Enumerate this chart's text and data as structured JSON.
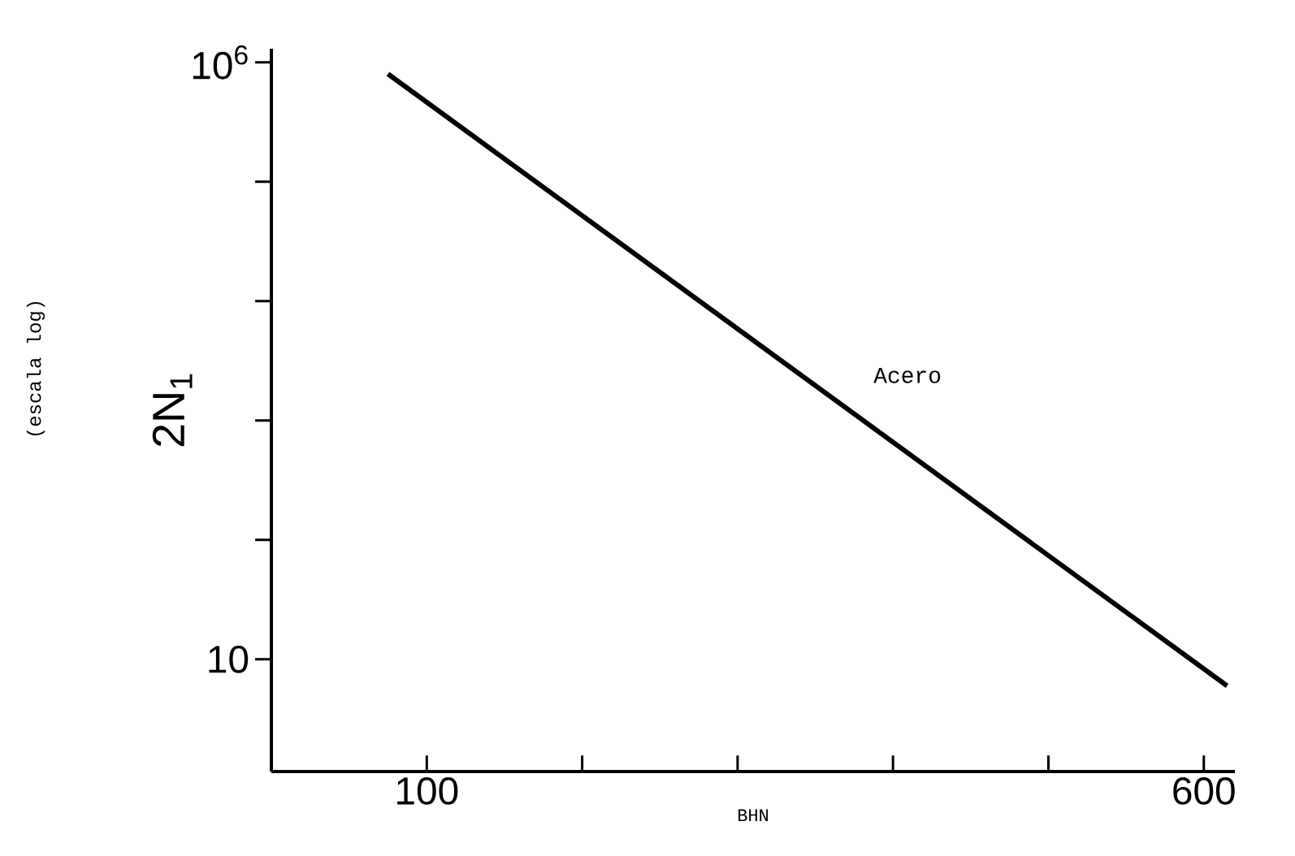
{
  "chart_data": {
    "type": "line",
    "xlabel": "BHN",
    "ylabel": "2N$_{1}$",
    "annotations": [
      "(escala log)"
    ],
    "log": "y",
    "x": [
      75,
      615
    ],
    "series": [
      {
        "name": "Acero",
        "color": "#000000",
        "values": [
          800000,
          6
        ]
      }
    ],
    "xlim": [
      0,
      620
    ],
    "ylim": [
      1.15,
      1300000
    ],
    "xticks": [
      100,
      {
        "value": 200,
        "label": null
      },
      {
        "value": 300,
        "label": null
      },
      {
        "value": 400,
        "label": null
      },
      {
        "value": 500,
        "label": null
      },
      600
    ],
    "yticks": [
      10,
      {
        "value": 100,
        "label": null
      },
      {
        "value": 1000,
        "label": null
      },
      {
        "value": 10000,
        "label": null
      },
      {
        "value": 100000,
        "label": null
      },
      {
        "value": 1000000,
        "label": "10$^{6}$"
      }
    ],
    "marker": "none",
    "line_style": "solid"
  }
}
